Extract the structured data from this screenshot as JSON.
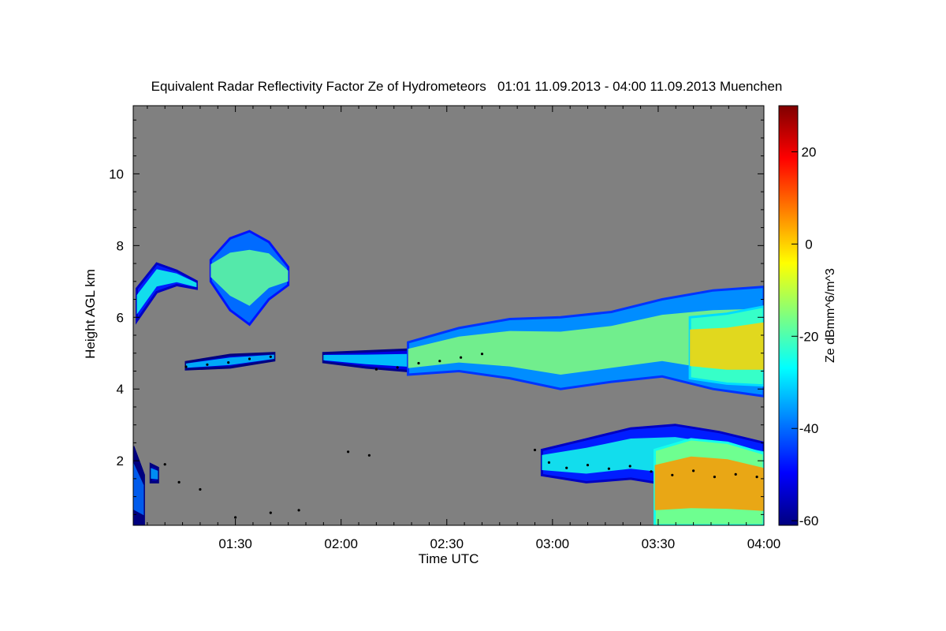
{
  "chart_data": {
    "type": "heatmap",
    "title": "Equivalent Radar Reflectivity Factor Ze of Hydrometeors   01:01 11.09.2013 - 04:00 11.09.2013 Muenchen",
    "xlabel": "Time UTC",
    "ylabel": "Height AGL km",
    "xlim_minutes": [
      61,
      240
    ],
    "ylim": [
      0.2,
      11.9
    ],
    "x_ticks": [
      {
        "label": "01:30",
        "minutes": 90
      },
      {
        "label": "02:00",
        "minutes": 120
      },
      {
        "label": "02:30",
        "minutes": 150
      },
      {
        "label": "03:00",
        "minutes": 180
      },
      {
        "label": "03:30",
        "minutes": 210
      },
      {
        "label": "04:00",
        "minutes": 240
      }
    ],
    "y_ticks": [
      2,
      4,
      6,
      8,
      10
    ],
    "colorbar": {
      "label": "Ze dBmm^6/m^3",
      "range": [
        -61,
        30
      ],
      "ticks": [
        20,
        0,
        -20,
        -40,
        -60
      ],
      "colormap": [
        "#00007f",
        "#0000ff",
        "#007fff",
        "#00ffff",
        "#7fff7f",
        "#ffff00",
        "#ff7f00",
        "#ff0000",
        "#7f0000"
      ]
    },
    "background_color": "#808080",
    "echo_regions": [
      {
        "name": "upper-left-streak",
        "t": [
          62,
          79
        ],
        "base": [
          5.9,
          6.7,
          6.9,
          6.8
        ],
        "top": [
          6.8,
          7.5,
          7.3,
          7.0
        ],
        "ze": -25
      },
      {
        "name": "upper-cirrus-cell",
        "t": [
          83,
          105
        ],
        "base": [
          7.0,
          6.2,
          5.8,
          6.5,
          6.9
        ],
        "top": [
          7.6,
          8.2,
          8.4,
          8.1,
          7.4
        ],
        "ze": -18
      },
      {
        "name": "mid-layer-thin-left",
        "t": [
          76,
          101
        ],
        "base": [
          4.55,
          4.6,
          4.8
        ],
        "top": [
          4.75,
          4.95,
          5.0
        ],
        "ze": -32
      },
      {
        "name": "mid-layer-segment",
        "t": [
          115,
          139
        ],
        "base": [
          4.75,
          4.6,
          4.5
        ],
        "top": [
          5.0,
          5.05,
          5.1
        ],
        "ze": -30
      },
      {
        "name": "main-stratiform-layer",
        "t": [
          139,
          240
        ],
        "base": [
          4.4,
          4.5,
          4.3,
          4.0,
          4.2,
          4.35,
          4.0,
          3.8
        ],
        "top": [
          5.3,
          5.7,
          5.95,
          6.0,
          6.15,
          6.5,
          6.75,
          6.85
        ],
        "ze": -15
      },
      {
        "name": "main-layer-core",
        "t": [
          219,
          240
        ],
        "base": [
          4.3,
          4.15,
          4.1
        ],
        "top": [
          6.0,
          6.1,
          6.3
        ],
        "ze": 0
      },
      {
        "name": "lower-cloud-band",
        "t": [
          177,
          240
        ],
        "base": [
          1.6,
          1.4,
          1.5,
          1.3,
          1.2,
          1.3
        ],
        "top": [
          2.3,
          2.6,
          2.9,
          3.0,
          2.8,
          2.5
        ],
        "ze": -25
      },
      {
        "name": "precipitation-shafts",
        "t": [
          209,
          240
        ],
        "base": [
          0.2,
          0.2,
          0.2,
          0.2
        ],
        "top": [
          2.3,
          2.6,
          2.5,
          2.2
        ],
        "ze": 5
      },
      {
        "name": "surface-echo-left",
        "t": [
          61,
          64
        ],
        "base": [
          0.2,
          0.2
        ],
        "top": [
          2.4,
          1.6
        ],
        "ze": -40
      },
      {
        "name": "small-echo-left",
        "t": [
          66,
          68
        ],
        "base": [
          1.4,
          1.4
        ],
        "top": [
          1.9,
          1.8
        ],
        "ze": -35
      }
    ],
    "cloud_base_points": [
      [
        76,
        4.62
      ],
      [
        82,
        4.68
      ],
      [
        88,
        4.74
      ],
      [
        94,
        4.84
      ],
      [
        100,
        4.9
      ],
      [
        130,
        4.55
      ],
      [
        136,
        4.6
      ],
      [
        142,
        4.72
      ],
      [
        148,
        4.78
      ],
      [
        154,
        4.88
      ],
      [
        160,
        4.98
      ],
      [
        175,
        2.3
      ],
      [
        179,
        1.95
      ],
      [
        184,
        1.8
      ],
      [
        190,
        1.88
      ],
      [
        196,
        1.78
      ],
      [
        202,
        1.85
      ],
      [
        208,
        1.7
      ],
      [
        214,
        1.6
      ],
      [
        220,
        1.72
      ],
      [
        226,
        1.55
      ],
      [
        232,
        1.62
      ],
      [
        238,
        1.55
      ],
      [
        70,
        1.9
      ],
      [
        74,
        1.4
      ],
      [
        80,
        1.2
      ],
      [
        90,
        0.42
      ],
      [
        100,
        0.55
      ],
      [
        108,
        0.62
      ],
      [
        122,
        2.25
      ],
      [
        128,
        2.15
      ]
    ]
  }
}
